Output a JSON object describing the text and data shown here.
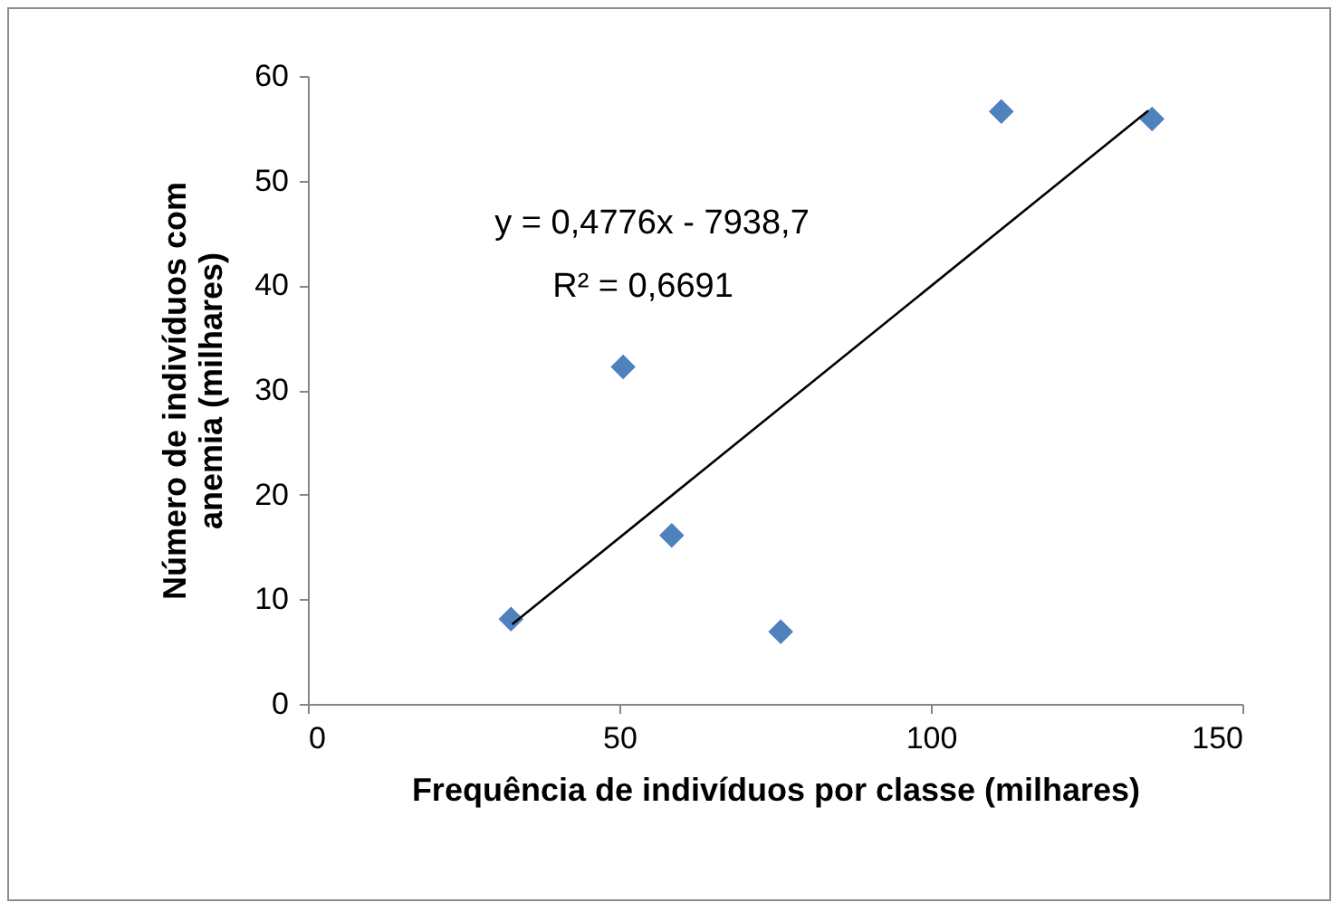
{
  "chart_data": {
    "type": "scatter",
    "xlabel": "Frequência de indivíduos por classe (milhares)",
    "ylabel": "Número de indivíduos com anemia (milhares)",
    "xlim": [
      0,
      150
    ],
    "xticks": [
      0,
      50,
      100,
      150
    ],
    "ylim": [
      0,
      60
    ],
    "yticks": [
      0,
      10,
      20,
      30,
      40,
      50,
      60
    ],
    "marker": "diamond",
    "grid": false,
    "series": [
      {
        "color": "#4f81bd",
        "x": [
          32.6,
          50.6,
          58.4,
          75.9,
          111.3,
          135.5
        ],
        "values": [
          8.1,
          32.2,
          16.1,
          6.9,
          56.6,
          55.9
        ]
      },
      {
        "type": "line",
        "marker": "none",
        "color": "#000000",
        "x": [
          32.8,
          134.9
        ],
        "values": [
          7.6,
          56.7
        ]
      }
    ],
    "annotations": [
      "y = 0,4776x - 7938,7",
      "R² = 0,6691"
    ]
  }
}
